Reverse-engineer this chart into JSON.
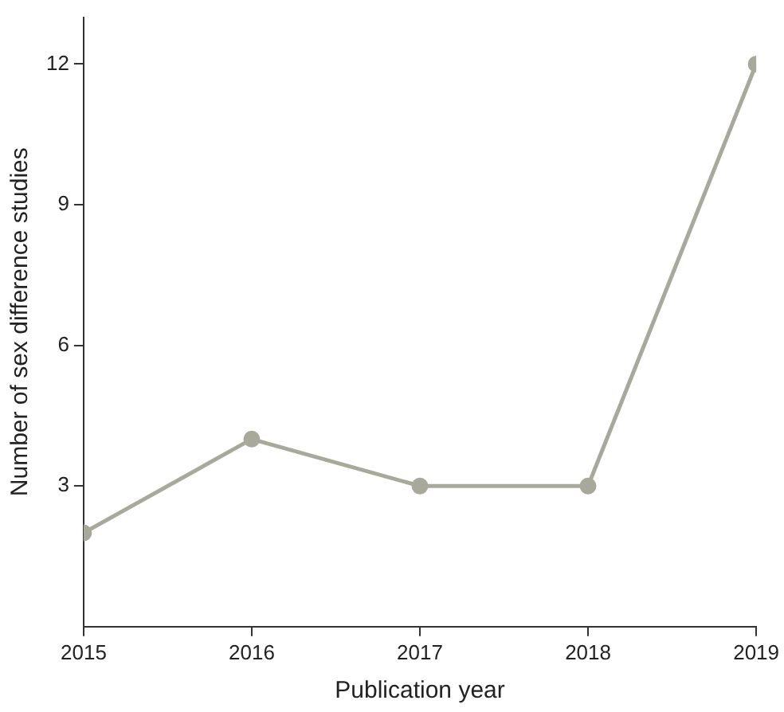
{
  "chart_data": {
    "type": "line",
    "xlabel": "Publication year",
    "ylabel": "Number of sex difference studies",
    "x": [
      2015,
      2016,
      2017,
      2018,
      2019
    ],
    "series": [
      {
        "color": "#a9a99b",
        "values": [
          2,
          4,
          3,
          3,
          12
        ]
      }
    ],
    "xlim": [
      2015,
      2019
    ],
    "xticks": [
      2015,
      2016,
      2017,
      2018,
      2019
    ],
    "ylim": [
      0,
      13
    ],
    "yticks": [
      3,
      6,
      9,
      12
    ],
    "grid": false,
    "legend": false,
    "marker": "circle",
    "line_style": "solid"
  }
}
